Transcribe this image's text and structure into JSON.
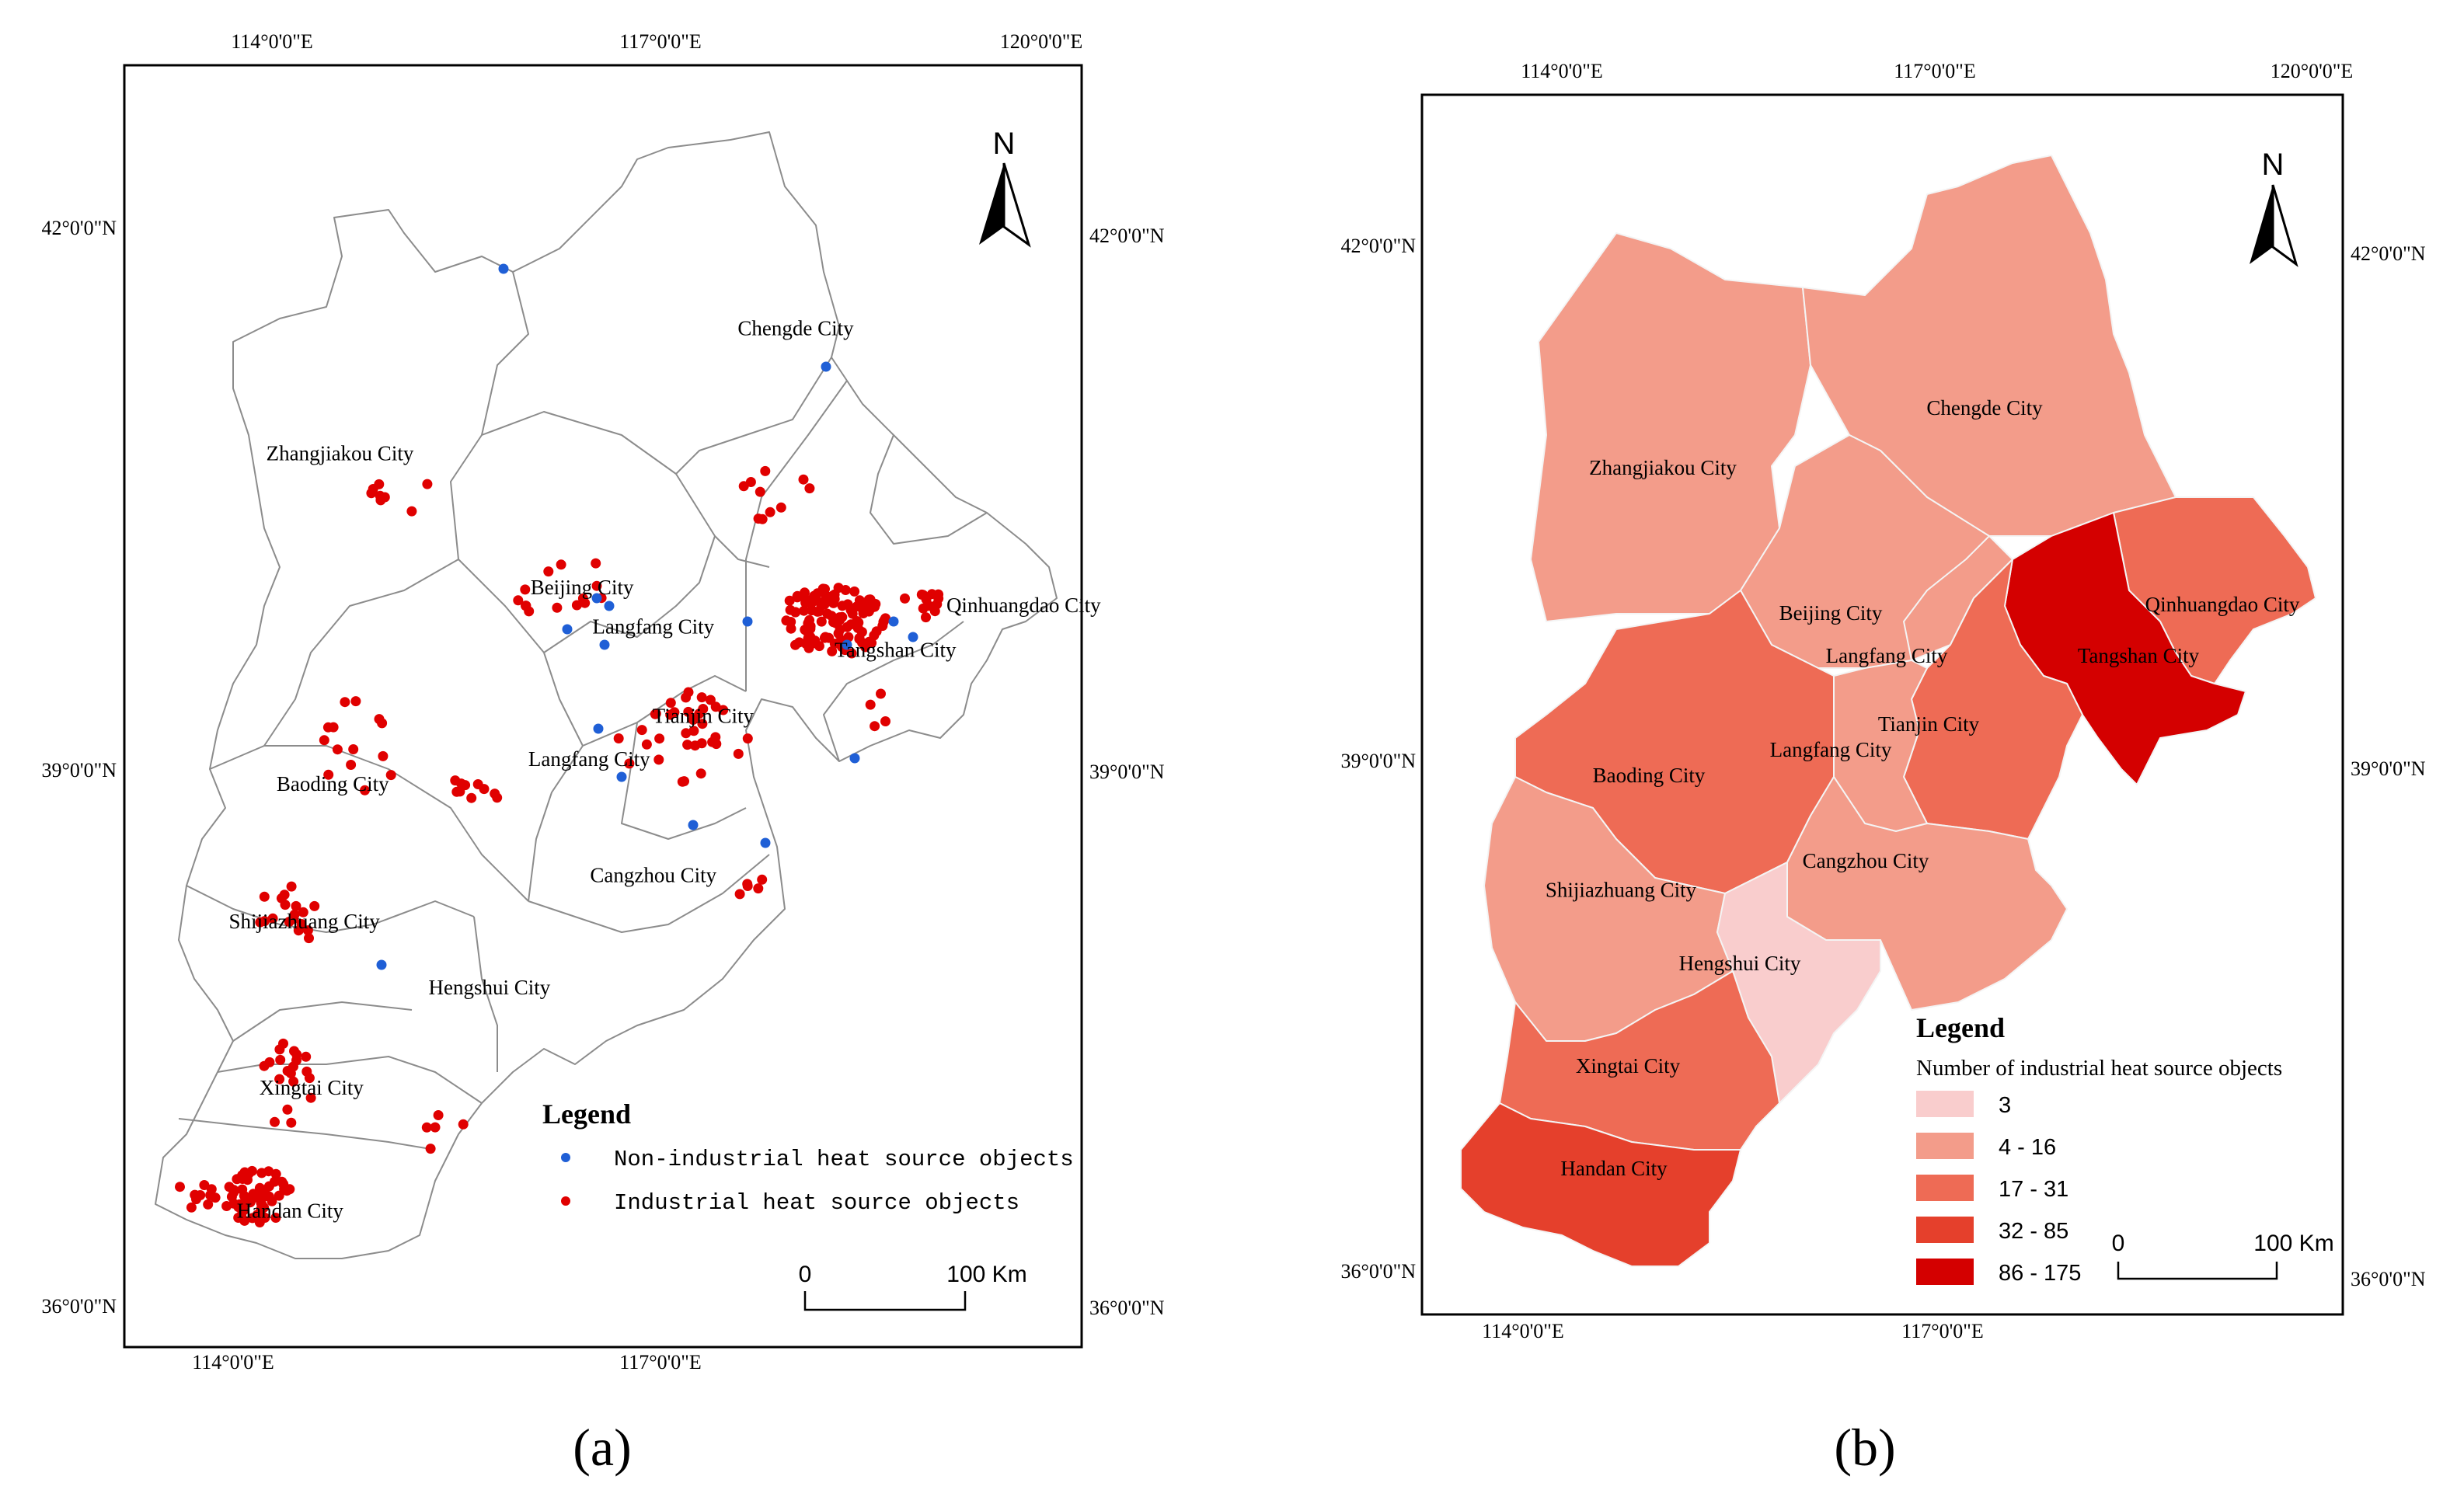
{
  "panel_a": {
    "label": "(a)",
    "lon_labels": [
      "114°0'0\"E",
      "117°0'0\"E",
      "120°0'0\"E"
    ],
    "lat_labels": [
      "42°0'0\"N",
      "39°0'0\"N",
      "36°0'0\"N"
    ],
    "north": "N",
    "cities": [
      {
        "name": "Chengde City",
        "lon": 117.95,
        "lat": 41.45
      },
      {
        "name": "Zhangjiakou City",
        "lon": 114.75,
        "lat": 40.75
      },
      {
        "name": "Beijing City",
        "lon": 116.45,
        "lat": 40.0
      },
      {
        "name": "Qinhuangdao City",
        "lon": 119.55,
        "lat": 39.9
      },
      {
        "name": "Langfang City",
        "lon": 116.95,
        "lat": 39.78
      },
      {
        "name": "Tangshan City",
        "lon": 118.65,
        "lat": 39.65
      },
      {
        "name": "Tianjin City",
        "lon": 117.3,
        "lat": 39.28
      },
      {
        "name": "Langfang City",
        "lon": 116.5,
        "lat": 39.04
      },
      {
        "name": "Baoding City",
        "lon": 114.7,
        "lat": 38.9
      },
      {
        "name": "Cangzhou City",
        "lon": 116.95,
        "lat": 38.39
      },
      {
        "name": "Shijiazhuang City",
        "lon": 114.5,
        "lat": 38.13
      },
      {
        "name": "Hengshui City",
        "lon": 115.8,
        "lat": 37.76
      },
      {
        "name": "Xingtai City",
        "lon": 114.55,
        "lat": 37.2
      },
      {
        "name": "Handan City",
        "lon": 114.4,
        "lat": 36.51
      }
    ],
    "legend": {
      "title": "Legend",
      "items": [
        {
          "label": "Non-industrial heat source objects",
          "color": "#1f5fd6"
        },
        {
          "label": "Industrial heat source objects",
          "color": "#e00000"
        }
      ]
    },
    "scale": {
      "zero": "0",
      "end": "100 Km"
    }
  },
  "panel_b": {
    "label": "(b)",
    "lon_labels": [
      "114°0'0\"E",
      "117°0'0\"E",
      "120°0'0\"E"
    ],
    "lat_labels": [
      "42°0'0\"N",
      "39°0'0\"N",
      "36°0'0\"N"
    ],
    "north": "N",
    "cities": [
      {
        "name": "Chengde City",
        "lon": 117.3,
        "lat": 41.05,
        "cls": 1
      },
      {
        "name": "Zhangjiakou City",
        "lon": 115.0,
        "lat": 40.7,
        "cls": 1
      },
      {
        "name": "Beijing City",
        "lon": 116.2,
        "lat": 39.85,
        "cls": 1
      },
      {
        "name": "Qinhuangdao City",
        "lon": 119.0,
        "lat": 39.9,
        "cls": 2
      },
      {
        "name": "Langfang City",
        "lon": 116.6,
        "lat": 39.6,
        "cls": 1
      },
      {
        "name": "Tangshan City",
        "lon": 118.4,
        "lat": 39.6,
        "cls": 4
      },
      {
        "name": "Tianjin City",
        "lon": 116.9,
        "lat": 39.2,
        "cls": 2
      },
      {
        "name": "Langfang City",
        "lon": 116.2,
        "lat": 39.05,
        "cls": 1
      },
      {
        "name": "Baoding City",
        "lon": 114.9,
        "lat": 38.9,
        "cls": 2
      },
      {
        "name": "Cangzhou City",
        "lon": 116.45,
        "lat": 38.4,
        "cls": 1
      },
      {
        "name": "Shijiazhuang City",
        "lon": 114.7,
        "lat": 38.23,
        "cls": 1
      },
      {
        "name": "Hengshui City",
        "lon": 115.55,
        "lat": 37.8,
        "cls": 0
      },
      {
        "name": "Xingtai City",
        "lon": 114.75,
        "lat": 37.2,
        "cls": 2
      },
      {
        "name": "Handan City",
        "lon": 114.65,
        "lat": 36.6,
        "cls": 3
      }
    ],
    "legend": {
      "title": "Legend",
      "subtitle": "Number of industrial heat source objects",
      "classes": [
        {
          "label": "3",
          "color": "#f9cdcd"
        },
        {
          "label": "4 - 16",
          "color": "#f39c8a"
        },
        {
          "label": "17 - 31",
          "color": "#ee6b55"
        },
        {
          "label": "32 - 85",
          "color": "#e5402c"
        },
        {
          "label": "86 - 175",
          "color": "#d40000"
        }
      ]
    },
    "scale": {
      "zero": "0",
      "end": "100 Km"
    }
  },
  "colors": {
    "border": "#999999",
    "frame": "#000000"
  }
}
